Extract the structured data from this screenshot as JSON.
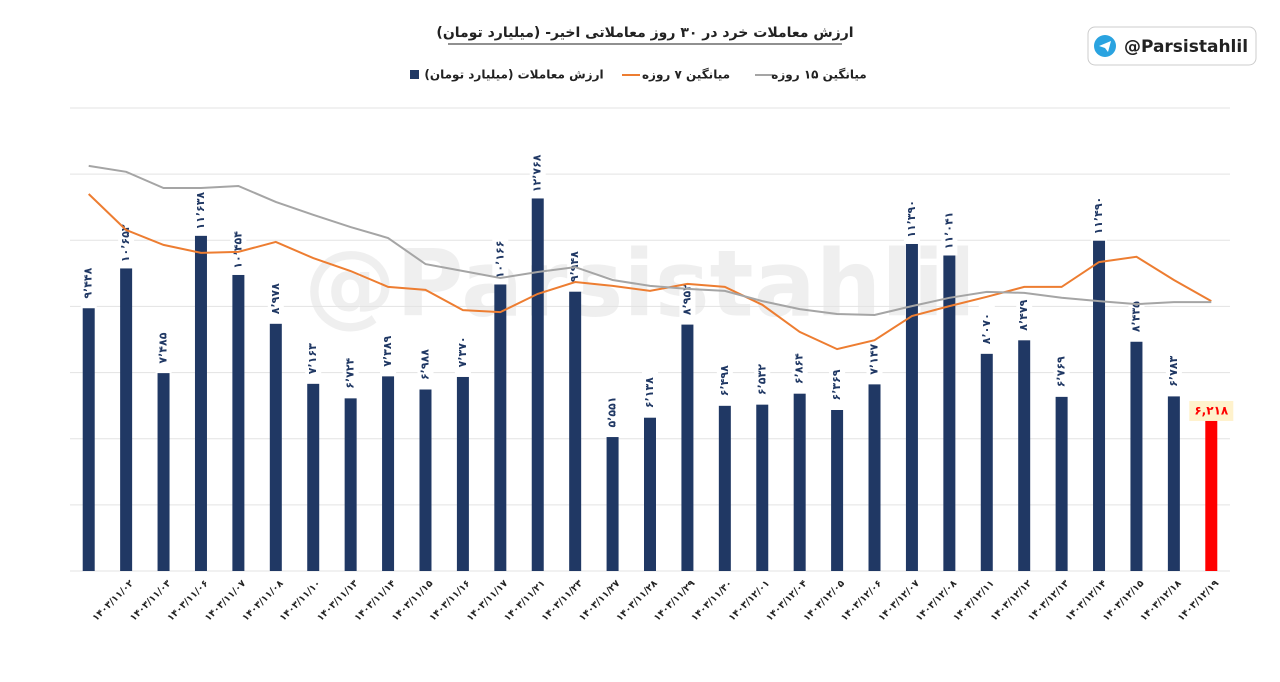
{
  "chart_data": {
    "type": "bar",
    "title": "ارزش معاملات خرد در ۳۰ روز معاملاتی اخیر- (میلیارد تومان)",
    "badge": "@Parsistahlil",
    "watermark": "@Parsistahlil",
    "categories": [
      null,
      "۱۴۰۳/۱۱/۰۲",
      "۱۴۰۳/۱۱/۰۳",
      "۱۴۰۳/۱۱/۰۶",
      "۱۴۰۳/۱۱/۰۷",
      "۱۴۰۳/۱۱/۰۸",
      "۱۴۰۳/۱۱/۱۰",
      "۱۴۰۳/۱۱/۱۳",
      "۱۴۰۳/۱۱/۱۴",
      "۱۴۰۳/۱۱/۱۵",
      "۱۴۰۳/۱۱/۱۶",
      "۱۴۰۳/۱۱/۱۷",
      "۱۴۰۳/۱۱/۲۱",
      "۱۴۰۳/۱۱/۲۳",
      "۱۴۰۳/۱۱/۲۷",
      "۱۴۰۳/۱۱/۲۸",
      "۱۴۰۳/۱۱/۲۹",
      "۱۴۰۳/۱۱/۳۰",
      "۱۴۰۳/۱۲/۰۱",
      "۱۴۰۳/۱۲/۰۴",
      "۱۴۰۳/۱۲/۰۵",
      "۱۴۰۳/۱۲/۰۶",
      "۱۴۰۳/۱۲/۰۷",
      "۱۴۰۳/۱۲/۰۸",
      "۱۴۰۳/۱۲/۱۱",
      "۱۴۰۳/۱۲/۱۲",
      "۱۴۰۳/۱۲/۱۳",
      "۱۴۰۳/۱۲/۱۴",
      "۱۴۰۳/۱۲/۱۵",
      "۱۴۰۳/۱۲/۱۸",
      "۱۴۰۳/۱۲/۱۹"
    ],
    "series": [
      {
        "name": "ارزش معاملات (میلیارد تومان)",
        "type": "bar",
        "color": "#203864",
        "colors": [
          "#203864",
          "#203864",
          "#203864",
          "#203864",
          "#203864",
          "#203864",
          "#203864",
          "#203864",
          "#203864",
          "#203864",
          "#203864",
          "#203864",
          "#203864",
          "#203864",
          "#203864",
          "#203864",
          "#203864",
          "#203864",
          "#203864",
          "#203864",
          "#203864",
          "#203864",
          "#203864",
          "#203864",
          "#203864",
          "#203864",
          "#203864",
          "#203864",
          "#203864",
          "#203864",
          "#ff0000"
        ],
        "values": [
          9448,
          10652,
          7485,
          11638,
          10454,
          8978,
          7163,
          6724,
          7389,
          6988,
          7370,
          10166,
          12768,
          9948,
          5551,
          6138,
          8952,
          6498,
          6532,
          6864,
          6369,
          7147,
          11390,
          11041,
          8070,
          8479,
          6769,
          11490,
          8435,
          6783,
          6218
        ],
        "value_labels": [
          "۹٬۴۴۸",
          "۱۰٬۶۵۲",
          "۷٬۴۸۵",
          "۱۱٬۶۳۸",
          "۱۰٬۴۵۴",
          "۸٬۹۷۸",
          "۷٬۱۶۳",
          "۶٬۷۲۴",
          "۷٬۳۸۹",
          "۶٬۹۸۸",
          "۷٬۳۷۰",
          "۱۰٬۱۶۶",
          "۱۲٬۷۶۸",
          "۹٬۹۴۸",
          "۵٬۵۵۱",
          "۶٬۱۳۸",
          "۸٬۹۵۲",
          "۶٬۴۹۸",
          "۶٬۵۳۲",
          "۶٬۸۶۴",
          "۶٬۳۶۹",
          "۷٬۱۴۷",
          "۱۱٬۳۹۰",
          "۱۱٬۰۴۱",
          "۸٬۰۷۰",
          "۸٬۴۷۹",
          "۶٬۷۶۹",
          "۱۱٬۴۹۰",
          "۸٬۴۳۵",
          "۶٬۷۸۳",
          "۶,۲۱۸"
        ]
      },
      {
        "name": "میانگین ۷ روزه",
        "type": "line",
        "color": "#ed7d31",
        "values": [
          12900,
          11810,
          11360,
          11120,
          11150,
          11450,
          10960,
          10570,
          10090,
          10000,
          9390,
          9330,
          9880,
          10240,
          10120,
          9970,
          10180,
          10090,
          9550,
          8730,
          8210,
          8480,
          9210,
          9510,
          9790,
          10090,
          10090,
          10840,
          11000,
          10300,
          9660
        ]
      },
      {
        "name": "میانگین ۱۵ روزه",
        "type": "line",
        "color": "#a5a5a5",
        "values": [
          13750,
          13570,
          13080,
          13080,
          13140,
          12660,
          12270,
          11900,
          11570,
          10780,
          10570,
          10360,
          10540,
          10690,
          10300,
          10120,
          10030,
          9970,
          9660,
          9420,
          9270,
          9240,
          9510,
          9760,
          9940,
          9910,
          9760,
          9660,
          9570,
          9630,
          9630
        ]
      }
    ],
    "ylim": [
      1500,
      15500
    ],
    "grid": true
  }
}
